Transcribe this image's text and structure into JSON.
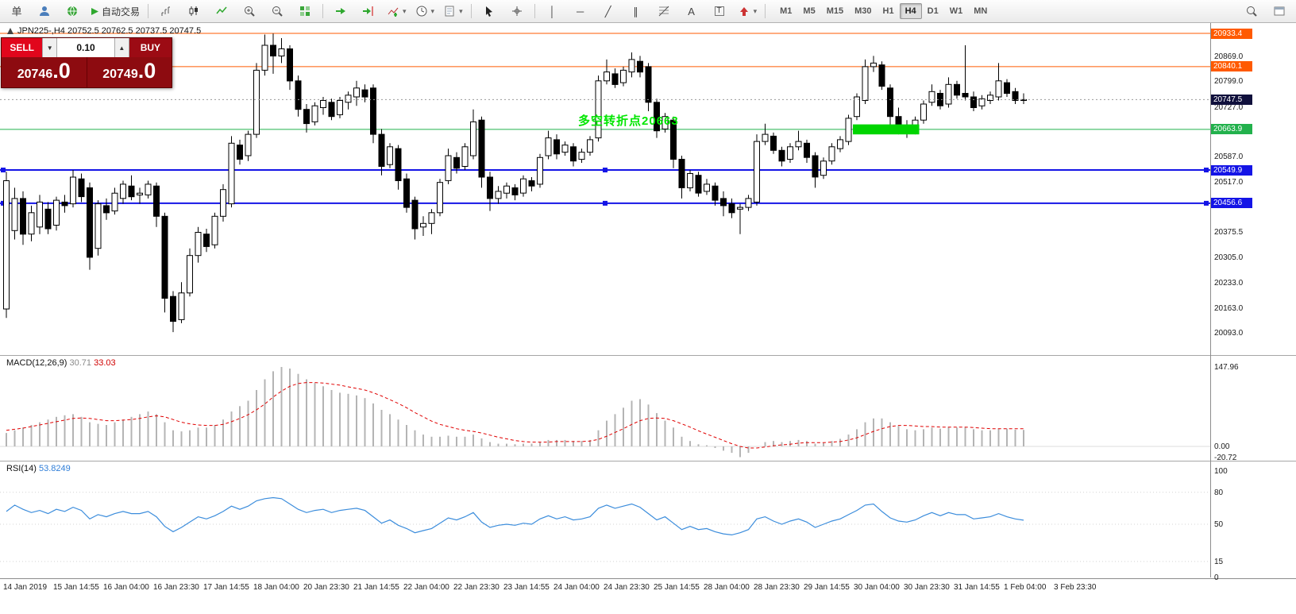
{
  "toolbar": {
    "new_order_label": "单",
    "autotrading_label": "自动交易",
    "timeframes": [
      "M1",
      "M5",
      "M15",
      "M30",
      "H1",
      "H4",
      "D1",
      "W1",
      "MN"
    ],
    "active_timeframe": "H4"
  },
  "icons": {
    "caret_down": "▾",
    "lot_down": "▼",
    "lot_up": "▲",
    "vline": "│",
    "hline": "─",
    "trendline": "╱",
    "channel": "∥",
    "text": "A",
    "text_label": "T"
  },
  "chart": {
    "ohlc_label": "JPN225-,H4  20752.5 20762.5 20737.5 20747.5",
    "annotation": {
      "text": "多空转折点20663",
      "color": "#00e600"
    },
    "current_price": {
      "value": 20747.5,
      "label": "20747.5",
      "bg": "#10103c"
    },
    "hlines": [
      {
        "price": 20933.4,
        "label": "20933.4",
        "color": "#ff5a00",
        "width": 1,
        "handles": false
      },
      {
        "price": 20840.1,
        "label": "20840.1",
        "color": "#ff5a00",
        "width": 1,
        "handles": false
      },
      {
        "price": 20663.9,
        "label": "20663.9",
        "color": "#22b14c",
        "width": 1,
        "handles": false
      },
      {
        "price": 20549.9,
        "label": "20549.9",
        "color": "#1414e6",
        "width": 2,
        "handles": true
      },
      {
        "price": 20456.6,
        "label": "20456.6",
        "color": "#1414e6",
        "width": 2,
        "handles": true
      }
    ],
    "axis_ticks": [
      20869.0,
      20799.0,
      20727.0,
      20587.0,
      20517.0,
      20375.5,
      20305.0,
      20233.0,
      20163.0,
      20093.0
    ],
    "highlight_box": {
      "from_bar": 102,
      "to_bar": 109,
      "price_top": 20678,
      "price_bottom": 20650,
      "color": "#00d500"
    }
  },
  "trade_panel": {
    "sell_label": "SELL",
    "buy_label": "BUY",
    "lot_value": "0.10",
    "sell_price_main": "20746",
    "sell_price_frac": ".0",
    "buy_price_main": "20749",
    "buy_price_frac": ".0"
  },
  "macd": {
    "label": "MACD(12,26,9)",
    "value_main": "30.71",
    "value_signal": "33.03",
    "axis": [
      "147.96",
      "0.00",
      "-20.72"
    ]
  },
  "rsi": {
    "label": "RSI(14)",
    "value": "53.8249",
    "axis": [
      "100",
      "80",
      "50",
      "15",
      "0"
    ],
    "levels": [
      80,
      50,
      15
    ]
  },
  "time_axis": {
    "labels": [
      "14 Jan 2019",
      "15 Jan 14:55",
      "16 Jan 04:00",
      "16 Jan 23:30",
      "17 Jan 14:55",
      "18 Jan 04:00",
      "20 Jan 23:30",
      "21 Jan 14:55",
      "22 Jan 04:00",
      "22 Jan 23:30",
      "23 Jan 14:55",
      "24 Jan 04:00",
      "24 Jan 23:30",
      "25 Jan 14:55",
      "28 Jan 04:00",
      "28 Jan 23:30",
      "29 Jan 14:55",
      "30 Jan 04:00",
      "30 Jan 23:30",
      "31 Jan 14:55",
      "1 Feb 04:00",
      "3 Feb 23:30"
    ]
  },
  "chart_data": [
    {
      "type": "candlestick",
      "symbol": "JPN225-",
      "timeframe": "H4",
      "last_ohlc": {
        "open": 20752.5,
        "high": 20762.5,
        "low": 20737.5,
        "close": 20747.5
      },
      "y_range": [
        20050,
        20960
      ],
      "candles": [
        [
          20160,
          20545,
          20135,
          20520
        ],
        [
          20380,
          20500,
          20355,
          20470
        ],
        [
          20470,
          20490,
          20340,
          20370
        ],
        [
          20370,
          20450,
          20350,
          20430
        ],
        [
          20390,
          20480,
          20370,
          20460
        ],
        [
          20440,
          20460,
          20370,
          20385
        ],
        [
          20395,
          20475,
          20380,
          20465
        ],
        [
          20460,
          20480,
          20430,
          20450
        ],
        [
          20455,
          20550,
          20445,
          20530
        ],
        [
          20525,
          20540,
          20460,
          20475
        ],
        [
          20500,
          20515,
          20270,
          20305
        ],
        [
          20330,
          20465,
          20310,
          20455
        ],
        [
          20450,
          20470,
          20410,
          20430
        ],
        [
          20435,
          20500,
          20425,
          20485
        ],
        [
          20470,
          20520,
          20455,
          20510
        ],
        [
          20505,
          20535,
          20465,
          20475
        ],
        [
          20480,
          20500,
          20455,
          20485
        ],
        [
          20480,
          20520,
          20470,
          20510
        ],
        [
          20505,
          20515,
          20390,
          20420
        ],
        [
          20420,
          20430,
          20150,
          20190
        ],
        [
          20195,
          20210,
          20095,
          20125
        ],
        [
          20130,
          20235,
          20120,
          20205
        ],
        [
          20205,
          20330,
          20195,
          20310
        ],
        [
          20310,
          20390,
          20290,
          20375
        ],
        [
          20370,
          20385,
          20320,
          20335
        ],
        [
          20340,
          20430,
          20330,
          20420
        ],
        [
          20420,
          20510,
          20405,
          20495
        ],
        [
          20455,
          20645,
          20445,
          20625
        ],
        [
          20620,
          20635,
          20565,
          20580
        ],
        [
          20590,
          20660,
          20575,
          20650
        ],
        [
          20650,
          20850,
          20640,
          20830
        ],
        [
          20830,
          20930,
          20815,
          20900
        ],
        [
          20900,
          20933,
          20820,
          20870
        ],
        [
          20870,
          20920,
          20850,
          20890
        ],
        [
          20890,
          20900,
          20775,
          20800
        ],
        [
          20800,
          20815,
          20700,
          20720
        ],
        [
          20720,
          20735,
          20655,
          20680
        ],
        [
          20685,
          20740,
          20675,
          20730
        ],
        [
          20725,
          20755,
          20705,
          20745
        ],
        [
          20740,
          20750,
          20690,
          20700
        ],
        [
          20705,
          20755,
          20695,
          20745
        ],
        [
          20740,
          20770,
          20720,
          20760
        ],
        [
          20755,
          20800,
          20730,
          20780
        ],
        [
          20775,
          20790,
          20740,
          20755
        ],
        [
          20780,
          20790,
          20625,
          20650
        ],
        [
          20650,
          20665,
          20535,
          20560
        ],
        [
          20565,
          20625,
          20555,
          20615
        ],
        [
          20610,
          20620,
          20495,
          20520
        ],
        [
          20525,
          20540,
          20430,
          20445
        ],
        [
          20465,
          20475,
          20355,
          20385
        ],
        [
          20390,
          20420,
          20365,
          20400
        ],
        [
          20400,
          20440,
          20370,
          20430
        ],
        [
          20430,
          20525,
          20420,
          20515
        ],
        [
          20520,
          20610,
          20510,
          20590
        ],
        [
          20585,
          20600,
          20540,
          20555
        ],
        [
          20560,
          20625,
          20550,
          20615
        ],
        [
          20590,
          20720,
          20580,
          20685
        ],
        [
          20690,
          20700,
          20500,
          20530
        ],
        [
          20530,
          20545,
          20435,
          20470
        ],
        [
          20470,
          20505,
          20455,
          20490
        ],
        [
          20485,
          20515,
          20470,
          20505
        ],
        [
          20500,
          20510,
          20465,
          20480
        ],
        [
          20485,
          20535,
          20475,
          20525
        ],
        [
          20520,
          20530,
          20490,
          20505
        ],
        [
          20510,
          20595,
          20500,
          20585
        ],
        [
          20590,
          20660,
          20580,
          20640
        ],
        [
          20635,
          20650,
          20580,
          20595
        ],
        [
          20600,
          20630,
          20590,
          20620
        ],
        [
          20615,
          20625,
          20560,
          20575
        ],
        [
          20580,
          20610,
          20570,
          20600
        ],
        [
          20600,
          20645,
          20590,
          20635
        ],
        [
          20640,
          20815,
          20630,
          20800
        ],
        [
          20800,
          20860,
          20790,
          20825
        ],
        [
          20820,
          20835,
          20780,
          20790
        ],
        [
          20795,
          20840,
          20785,
          20830
        ],
        [
          20825,
          20880,
          20810,
          20860
        ],
        [
          20855,
          20870,
          20810,
          20825
        ],
        [
          20840,
          20850,
          20715,
          20740
        ],
        [
          20740,
          20750,
          20640,
          20660
        ],
        [
          20665,
          20710,
          20655,
          20700
        ],
        [
          20690,
          20700,
          20555,
          20580
        ],
        [
          20580,
          20590,
          20470,
          20500
        ],
        [
          20500,
          20550,
          20490,
          20540
        ],
        [
          20535,
          20545,
          20475,
          20485
        ],
        [
          20490,
          20525,
          20480,
          20510
        ],
        [
          20505,
          20515,
          20450,
          20465
        ],
        [
          20470,
          20490,
          20420,
          20450
        ],
        [
          20455,
          20470,
          20415,
          20430
        ],
        [
          20440,
          20455,
          20370,
          20445
        ],
        [
          20445,
          20480,
          20435,
          20470
        ],
        [
          20460,
          20650,
          20450,
          20630
        ],
        [
          20630,
          20680,
          20620,
          20650
        ],
        [
          20645,
          20655,
          20595,
          20605
        ],
        [
          20605,
          20615,
          20560,
          20575
        ],
        [
          20580,
          20625,
          20570,
          20615
        ],
        [
          20615,
          20660,
          20605,
          20630
        ],
        [
          20625,
          20635,
          20570,
          20585
        ],
        [
          20590,
          20600,
          20500,
          20530
        ],
        [
          20535,
          20585,
          20525,
          20575
        ],
        [
          20575,
          20625,
          20565,
          20615
        ],
        [
          20610,
          20645,
          20600,
          20635
        ],
        [
          20630,
          20705,
          20620,
          20695
        ],
        [
          20700,
          20765,
          20690,
          20755
        ],
        [
          20745,
          20860,
          20735,
          20840
        ],
        [
          20840,
          20870,
          20825,
          20850
        ],
        [
          20845,
          20855,
          20775,
          20785
        ],
        [
          20780,
          20790,
          20675,
          20700
        ],
        [
          20700,
          20725,
          20650,
          20670
        ],
        [
          20675,
          20690,
          20640,
          20660
        ],
        [
          20660,
          20700,
          20650,
          20690
        ],
        [
          20690,
          20745,
          20680,
          20735
        ],
        [
          20740,
          20790,
          20730,
          20770
        ],
        [
          20765,
          20775,
          20720,
          20730
        ],
        [
          20735,
          20810,
          20725,
          20790
        ],
        [
          20790,
          20800,
          20750,
          20760
        ],
        [
          20765,
          20900,
          20745,
          20755
        ],
        [
          20755,
          20770,
          20715,
          20725
        ],
        [
          20730,
          20760,
          20720,
          20750
        ],
        [
          20745,
          20770,
          20735,
          20760
        ],
        [
          20755,
          20850,
          20745,
          20800
        ],
        [
          20795,
          20805,
          20755,
          20765
        ],
        [
          20770,
          20780,
          20735,
          20745
        ],
        [
          20745,
          20765,
          20735,
          20747.5
        ]
      ]
    },
    {
      "type": "bar",
      "name": "MACD(12,26,9)",
      "current": [
        30.71,
        33.03
      ],
      "y_range": [
        -25,
        150
      ],
      "histogram": [
        25,
        30,
        35,
        40,
        45,
        50,
        55,
        58,
        60,
        55,
        45,
        42,
        40,
        45,
        50,
        55,
        60,
        65,
        60,
        45,
        30,
        28,
        30,
        35,
        35,
        40,
        50,
        65,
        75,
        85,
        105,
        125,
        140,
        148,
        145,
        135,
        125,
        118,
        112,
        105,
        100,
        98,
        95,
        90,
        80,
        68,
        60,
        50,
        40,
        30,
        22,
        18,
        18,
        20,
        18,
        18,
        22,
        15,
        8,
        5,
        5,
        4,
        5,
        5,
        8,
        12,
        12,
        12,
        10,
        10,
        12,
        30,
        48,
        60,
        72,
        85,
        88,
        78,
        62,
        48,
        35,
        18,
        10,
        4,
        2,
        -3,
        -8,
        -12,
        -20,
        -12,
        0,
        8,
        10,
        8,
        10,
        12,
        10,
        5,
        6,
        10,
        14,
        22,
        32,
        45,
        52,
        52,
        45,
        38,
        32,
        30,
        32,
        35,
        33,
        36,
        35,
        36,
        32,
        30,
        30,
        33,
        33,
        31,
        30.7
      ],
      "signal": [
        30,
        32,
        34,
        37,
        40,
        43,
        46,
        49,
        52,
        53,
        52,
        50,
        48,
        48,
        49,
        50,
        52,
        55,
        57,
        55,
        50,
        45,
        42,
        40,
        39,
        39,
        41,
        46,
        52,
        59,
        68,
        79,
        92,
        103,
        112,
        117,
        119,
        119,
        118,
        116,
        114,
        111,
        108,
        105,
        100,
        94,
        87,
        80,
        72,
        63,
        55,
        47,
        41,
        37,
        33,
        30,
        28,
        25,
        21,
        17,
        14,
        11,
        9,
        8,
        8,
        8,
        9,
        9,
        9,
        9,
        10,
        13,
        19,
        26,
        33,
        41,
        48,
        52,
        53,
        52,
        48,
        42,
        36,
        29,
        23,
        17,
        11,
        5,
        0,
        -3,
        -3,
        -1,
        1,
        3,
        4,
        6,
        7,
        7,
        7,
        8,
        9,
        12,
        16,
        22,
        28,
        33,
        37,
        39,
        39,
        38,
        37,
        37,
        36,
        36,
        36,
        36,
        35,
        34,
        33,
        33,
        33,
        33,
        33.03
      ]
    },
    {
      "type": "line",
      "name": "RSI(14)",
      "current": 53.8249,
      "y_range": [
        0,
        100
      ],
      "values": [
        62,
        68,
        64,
        61,
        63,
        60,
        64,
        62,
        66,
        63,
        55,
        59,
        57,
        60,
        62,
        60,
        60,
        62,
        57,
        48,
        43,
        47,
        52,
        57,
        55,
        58,
        62,
        67,
        64,
        67,
        72,
        74,
        75,
        74,
        69,
        64,
        61,
        63,
        64,
        61,
        63,
        64,
        65,
        63,
        57,
        51,
        54,
        49,
        46,
        42,
        44,
        46,
        51,
        56,
        54,
        57,
        61,
        52,
        47,
        49,
        50,
        49,
        51,
        50,
        55,
        58,
        55,
        57,
        54,
        55,
        57,
        65,
        68,
        65,
        67,
        69,
        66,
        60,
        54,
        57,
        51,
        45,
        48,
        45,
        46,
        43,
        41,
        40,
        42,
        45,
        55,
        57,
        53,
        50,
        53,
        55,
        52,
        47,
        50,
        53,
        55,
        59,
        63,
        68,
        69,
        62,
        56,
        53,
        52,
        54,
        58,
        61,
        58,
        61,
        59,
        59,
        55,
        56,
        57,
        60,
        57,
        55,
        53.8
      ]
    }
  ]
}
